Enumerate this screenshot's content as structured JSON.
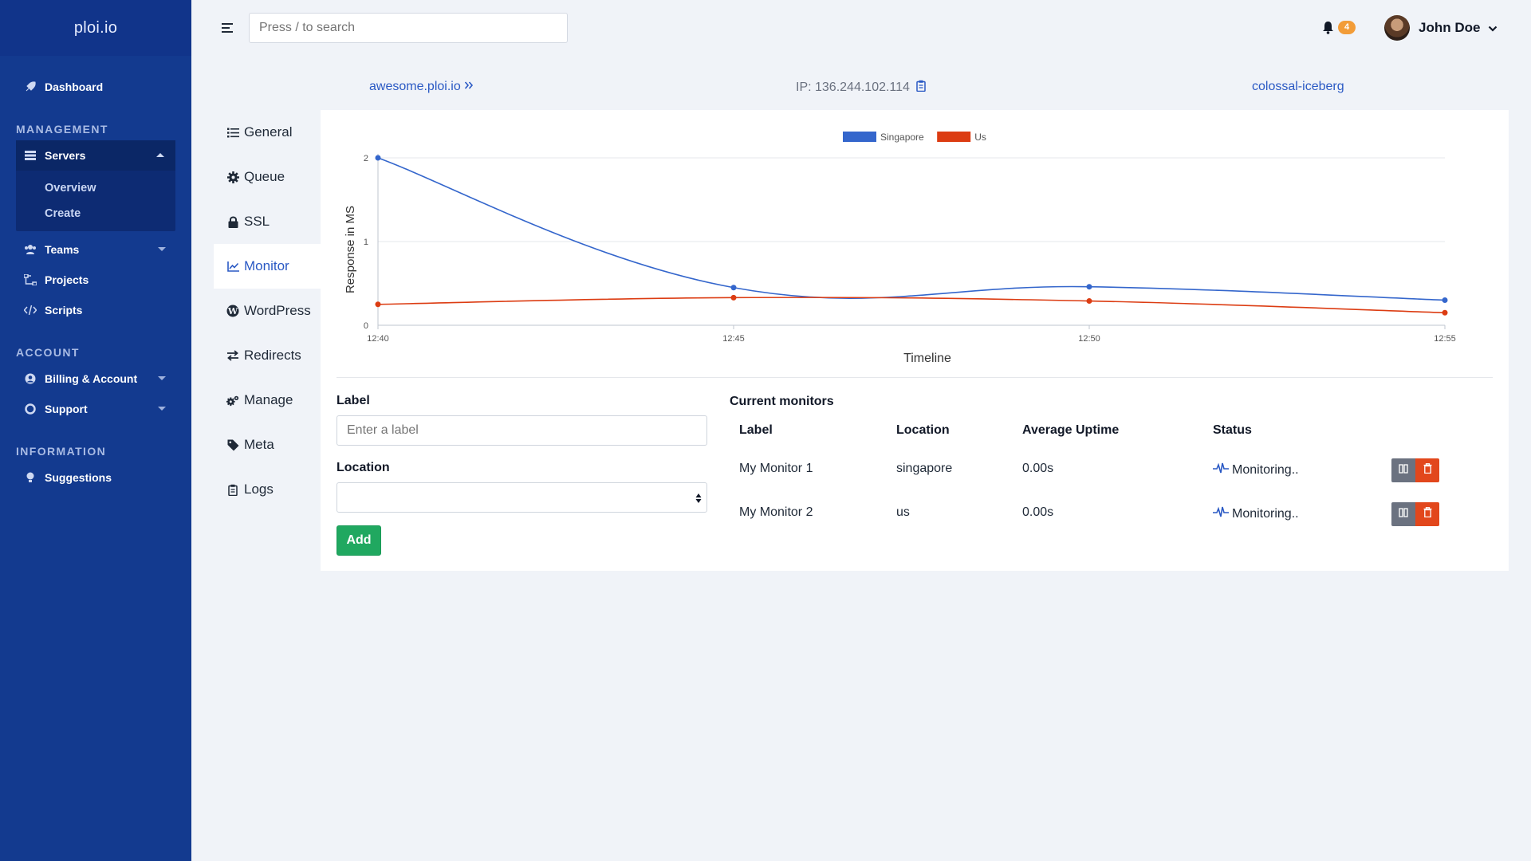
{
  "sidebar": {
    "brand": "ploi.io",
    "dashboard": "Dashboard",
    "sections": {
      "management": "MANAGEMENT",
      "account": "ACCOUNT",
      "information": "INFORMATION"
    },
    "servers": "Servers",
    "servers_sub": [
      "Overview",
      "Create"
    ],
    "teams": "Teams",
    "projects": "Projects",
    "scripts": "Scripts",
    "billing": "Billing & Account",
    "support": "Support",
    "suggestions": "Suggestions"
  },
  "topbar": {
    "search_placeholder": "Press / to search",
    "notifications": "4",
    "user": "John Doe"
  },
  "header": {
    "site": "awesome.ploi.io",
    "ip": "IP: 136.244.102.114",
    "server": "colossal-iceberg"
  },
  "tabs": [
    "General",
    "Queue",
    "SSL",
    "Monitor",
    "WordPress",
    "Redirects",
    "Manage",
    "Meta",
    "Logs"
  ],
  "form": {
    "label_title": "Label",
    "label_placeholder": "Enter a label",
    "location_title": "Location",
    "location_value": "",
    "add": "Add"
  },
  "monitors": {
    "title": "Current monitors",
    "columns": [
      "Label",
      "Location",
      "Average Uptime",
      "Status"
    ],
    "rows": [
      {
        "label": "My Monitor 1",
        "location": "singapore",
        "uptime": "0.00s",
        "status": "Monitoring.."
      },
      {
        "label": "My Monitor 2",
        "location": "us",
        "uptime": "0.00s",
        "status": "Monitoring.."
      }
    ]
  },
  "colors": {
    "sidebar": "#133a8f",
    "accent": "#2a59c4",
    "singapore": "#3466cc",
    "us": "#dc3c12",
    "add": "#20a860",
    "delete": "#e2471c"
  },
  "chart_data": {
    "type": "line",
    "x": [
      "12:40",
      "12:45",
      "12:50",
      "12:55"
    ],
    "series": [
      {
        "name": "Singapore",
        "values": [
          2,
          0.45,
          0.46,
          0.3
        ]
      },
      {
        "name": "Us",
        "values": [
          0.25,
          0.33,
          0.29,
          0.15
        ]
      }
    ],
    "xlabel": "Timeline",
    "ylabel": "Response in MS",
    "ylim": [
      0,
      2
    ],
    "yticks": [
      0,
      1,
      2
    ],
    "legend": "top-center",
    "grid": true
  }
}
